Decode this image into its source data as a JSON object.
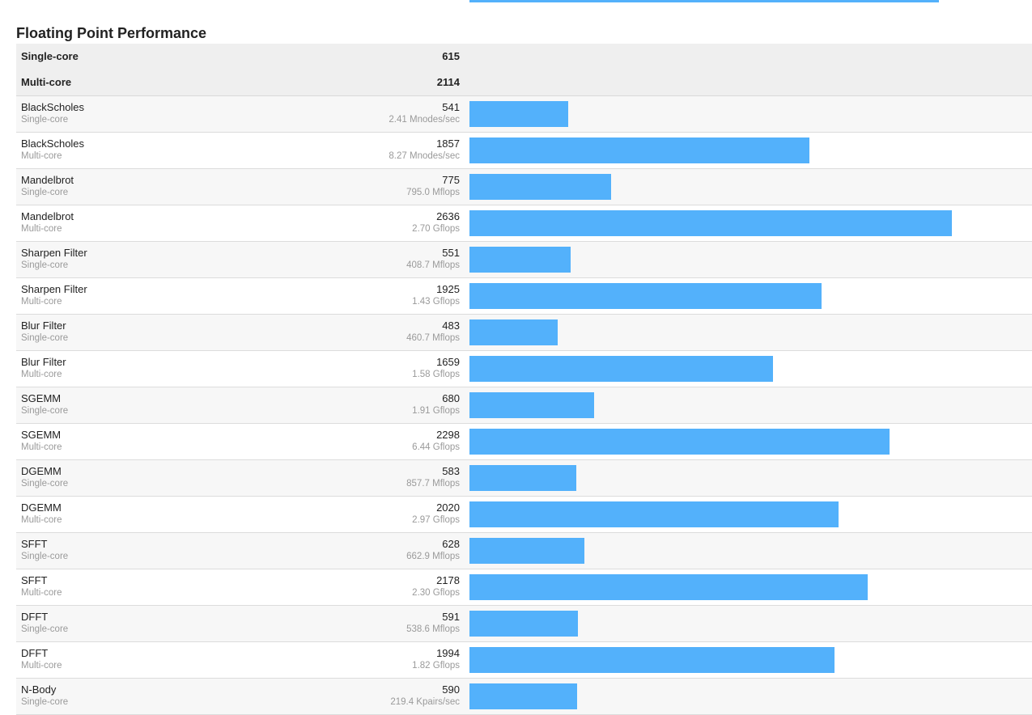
{
  "section_title": "Floating Point Performance",
  "colors": {
    "bar": "#53b1fb",
    "summary_bg": "#efefef"
  },
  "scale_max_score": 2636,
  "scale_max_fraction": 0.857,
  "top_partial_bar": {
    "score_fraction": 0.834
  },
  "summary": [
    {
      "label": "Single-core",
      "score": "615"
    },
    {
      "label": "Multi-core",
      "score": "2114"
    }
  ],
  "rows": [
    {
      "name": "BlackScholes",
      "mode": "Single-core",
      "score": "541",
      "rate": "2.41 Mnodes/sec"
    },
    {
      "name": "BlackScholes",
      "mode": "Multi-core",
      "score": "1857",
      "rate": "8.27 Mnodes/sec"
    },
    {
      "name": "Mandelbrot",
      "mode": "Single-core",
      "score": "775",
      "rate": "795.0 Mflops"
    },
    {
      "name": "Mandelbrot",
      "mode": "Multi-core",
      "score": "2636",
      "rate": "2.70 Gflops"
    },
    {
      "name": "Sharpen Filter",
      "mode": "Single-core",
      "score": "551",
      "rate": "408.7 Mflops"
    },
    {
      "name": "Sharpen Filter",
      "mode": "Multi-core",
      "score": "1925",
      "rate": "1.43 Gflops"
    },
    {
      "name": "Blur Filter",
      "mode": "Single-core",
      "score": "483",
      "rate": "460.7 Mflops"
    },
    {
      "name": "Blur Filter",
      "mode": "Multi-core",
      "score": "1659",
      "rate": "1.58 Gflops"
    },
    {
      "name": "SGEMM",
      "mode": "Single-core",
      "score": "680",
      "rate": "1.91 Gflops"
    },
    {
      "name": "SGEMM",
      "mode": "Multi-core",
      "score": "2298",
      "rate": "6.44 Gflops"
    },
    {
      "name": "DGEMM",
      "mode": "Single-core",
      "score": "583",
      "rate": "857.7 Mflops"
    },
    {
      "name": "DGEMM",
      "mode": "Multi-core",
      "score": "2020",
      "rate": "2.97 Gflops"
    },
    {
      "name": "SFFT",
      "mode": "Single-core",
      "score": "628",
      "rate": "662.9 Mflops"
    },
    {
      "name": "SFFT",
      "mode": "Multi-core",
      "score": "2178",
      "rate": "2.30 Gflops"
    },
    {
      "name": "DFFT",
      "mode": "Single-core",
      "score": "591",
      "rate": "538.6 Mflops"
    },
    {
      "name": "DFFT",
      "mode": "Multi-core",
      "score": "1994",
      "rate": "1.82 Gflops"
    },
    {
      "name": "N-Body",
      "mode": "Single-core",
      "score": "590",
      "rate": "219.4 Kpairs/sec"
    }
  ]
}
